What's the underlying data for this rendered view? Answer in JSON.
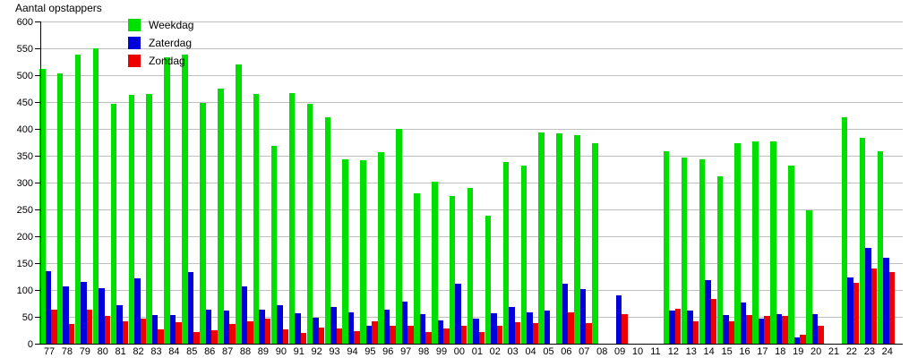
{
  "title": "Aantal opstappers",
  "colors": {
    "weekdag": "#00DF00",
    "zaterdag": "#0000DD",
    "zondag": "#EE0000",
    "grid": "#bfbfbf",
    "axis": "#000000",
    "background": "#ffffff"
  },
  "legend": {
    "items": [
      {
        "label": "Weekdag",
        "color": "#00DF00"
      },
      {
        "label": "Zaterdag",
        "color": "#0000DD"
      },
      {
        "label": "Zondag",
        "color": "#EE0000"
      }
    ]
  },
  "chart_data": {
    "type": "bar",
    "title": "Aantal opstappers",
    "xlabel": "",
    "ylabel": "Aantal opstappers",
    "ylim": [
      0,
      600
    ],
    "ytick_step": 50,
    "yticks": [
      0,
      50,
      100,
      150,
      200,
      250,
      300,
      350,
      400,
      450,
      500,
      550,
      600
    ],
    "grid": true,
    "legend_position": "top-left-inside",
    "categories": [
      "77",
      "78",
      "79",
      "80",
      "81",
      "82",
      "83",
      "84",
      "85",
      "86",
      "87",
      "88",
      "89",
      "90",
      "91",
      "92",
      "93",
      "94",
      "95",
      "96",
      "97",
      "98",
      "99",
      "00",
      "01",
      "02",
      "03",
      "04",
      "05",
      "06",
      "07",
      "08",
      "09",
      "10",
      "11",
      "12",
      "13",
      "14",
      "15",
      "16",
      "17",
      "18",
      "19",
      "20",
      "21",
      "22",
      "23",
      "24"
    ],
    "series": [
      {
        "name": "Weekdag",
        "color": "#00DF00",
        "values": [
          512,
          503,
          538,
          550,
          446,
          463,
          465,
          533,
          538,
          449,
          475,
          520,
          465,
          369,
          466,
          446,
          422,
          343,
          341,
          357,
          400,
          280,
          302,
          275,
          290,
          239,
          338,
          332,
          394,
          392,
          389,
          374,
          0,
          0,
          0,
          358,
          347,
          343,
          311,
          374,
          376,
          377,
          331,
          248,
          0,
          421,
          383,
          358
        ]
      },
      {
        "name": "Zaterdag",
        "color": "#0000DD",
        "values": [
          135,
          107,
          115,
          104,
          72,
          121,
          54,
          53,
          133,
          63,
          62,
          106,
          64,
          72,
          57,
          48,
          69,
          59,
          34,
          63,
          79,
          55,
          44,
          112,
          46,
          57,
          68,
          58,
          61,
          111,
          102,
          0,
          90,
          0,
          0,
          62,
          62,
          119,
          54,
          76,
          46,
          55,
          12,
          55,
          0,
          123,
          179,
          160
        ]
      },
      {
        "name": "Zondag",
        "color": "#EE0000",
        "values": [
          63,
          37,
          63,
          51,
          42,
          46,
          26,
          40,
          21,
          25,
          37,
          41,
          47,
          26,
          20,
          30,
          29,
          24,
          41,
          34,
          33,
          21,
          29,
          33,
          22,
          34,
          40,
          38,
          0,
          59,
          39,
          0,
          55,
          0,
          0,
          65,
          41,
          83,
          42,
          54,
          51,
          51,
          17,
          33,
          0,
          113,
          140,
          133
        ]
      }
    ]
  }
}
